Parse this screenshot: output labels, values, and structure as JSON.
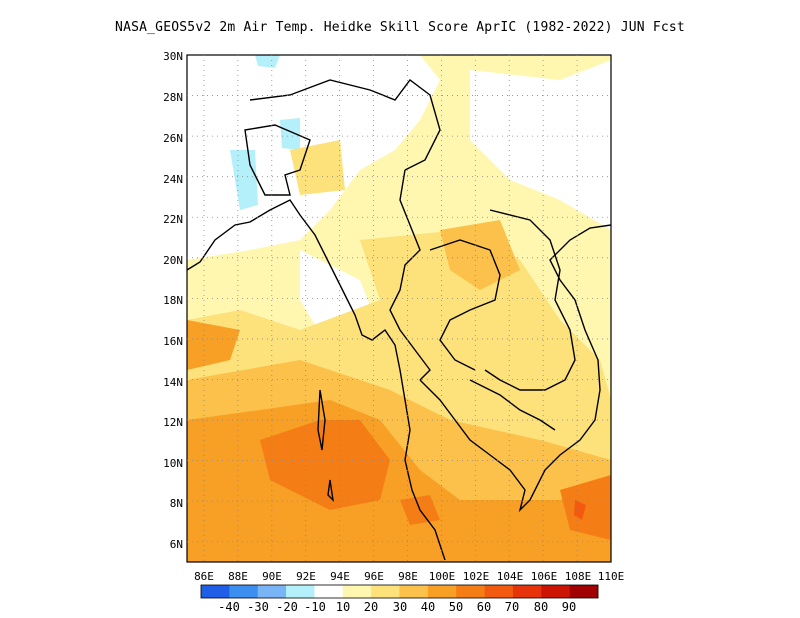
{
  "title": "NASA_GEOS5v2  2m Air Temp. Heidke Skill Score AprIC (1982-2022) JUN Fcst",
  "map": {
    "lon_range": [
      85,
      110
    ],
    "lat_range": [
      5,
      30
    ],
    "grid": "dotted",
    "x_ticks": [
      "86E",
      "88E",
      "90E",
      "92E",
      "94E",
      "96E",
      "98E",
      "100E",
      "102E",
      "104E",
      "106E",
      "108E",
      "110E"
    ],
    "y_ticks": [
      "6N",
      "8N",
      "10N",
      "12N",
      "14N",
      "16N",
      "18N",
      "20N",
      "22N",
      "24N",
      "26N",
      "28N",
      "30N"
    ]
  },
  "colorbar": {
    "colors": [
      "#1f5fe8",
      "#3c8ef0",
      "#79b4f7",
      "#b4f0fa",
      "#ffffff",
      "#fff7b0",
      "#fde17a",
      "#fbc14a",
      "#f7a025",
      "#f57d15",
      "#f15a0f",
      "#e6330b",
      "#cc1405",
      "#a00000"
    ],
    "labels": [
      "-40",
      "-30",
      "-20",
      "-10",
      "10",
      "20",
      "30",
      "40",
      "50",
      "60",
      "70",
      "80",
      "90"
    ]
  }
}
